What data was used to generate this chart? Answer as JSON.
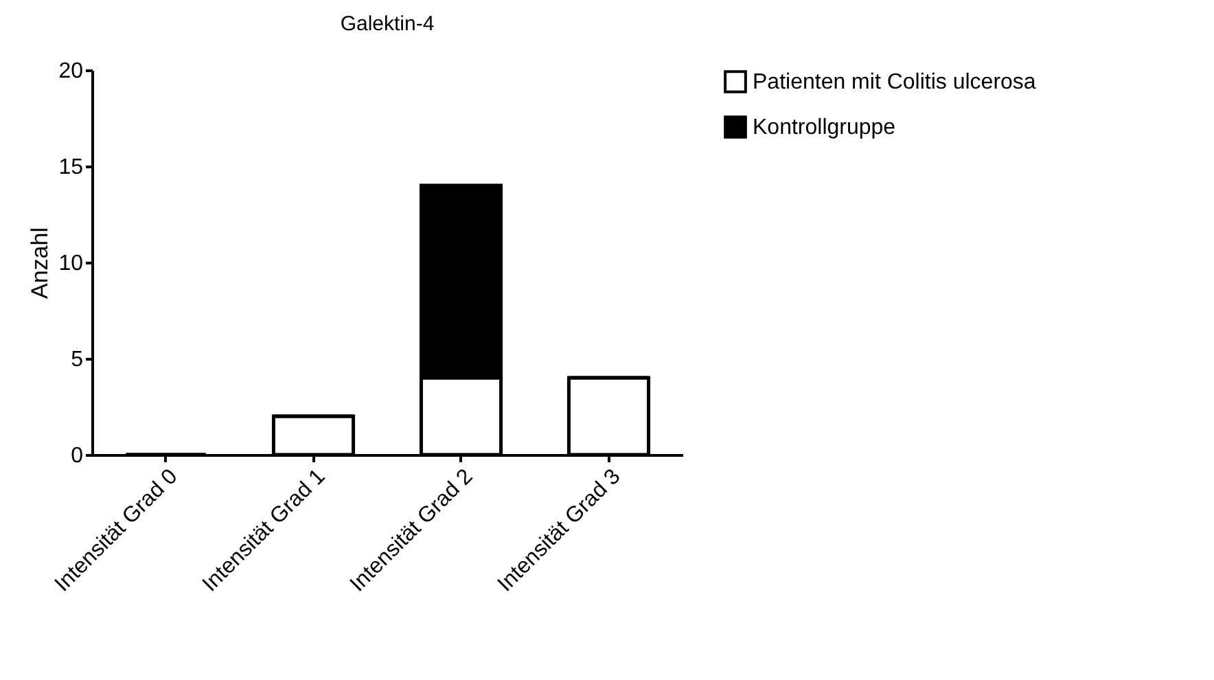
{
  "chart_data": {
    "type": "bar",
    "title": "Galektin-4",
    "ylabel": "Anzahl",
    "categories": [
      "Intensität Grad 0",
      "Intensität Grad 1",
      "Intensität Grad 2",
      "Intensität Grad 3"
    ],
    "series": [
      {
        "name": "Patienten mit Colitis ulcerosa",
        "color": "#ffffff",
        "values": [
          0,
          2,
          4,
          4
        ]
      },
      {
        "name": "Kontrollgruppe",
        "color": "#000000",
        "values": [
          0,
          0,
          10,
          0
        ]
      }
    ],
    "stacked": true,
    "ylim": [
      0,
      20
    ],
    "yticks": [
      0,
      5,
      10,
      15,
      20
    ],
    "grid": false,
    "legend": "right"
  }
}
